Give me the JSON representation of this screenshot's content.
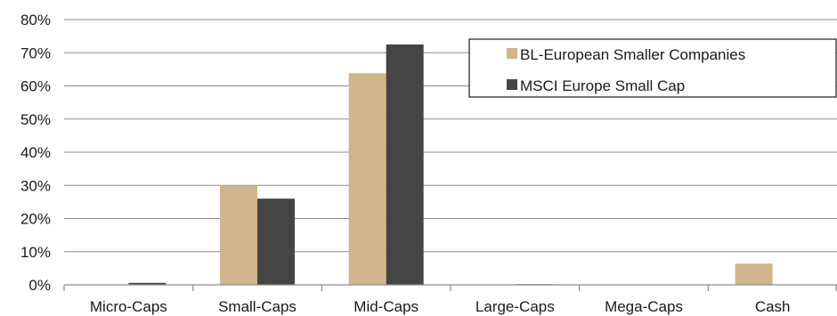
{
  "chart_data": {
    "type": "bar",
    "categories": [
      "Micro-Caps",
      "Small-Caps",
      "Mid-Caps",
      "Large-Caps",
      "Mega-Caps",
      "Cash"
    ],
    "series": [
      {
        "name": "BL-European Smaller Companies",
        "values": [
          0,
          29.8,
          63.8,
          0,
          0,
          6.4
        ],
        "color": "#d2b48c"
      },
      {
        "name": "MSCI Europe Small Cap",
        "values": [
          0.6,
          26.0,
          72.5,
          0.2,
          0,
          0
        ],
        "color": "#454545"
      }
    ],
    "ylim": [
      0,
      80
    ],
    "yticks": [
      "0%",
      "10%",
      "20%",
      "30%",
      "40%",
      "50%",
      "60%",
      "70%",
      "80%"
    ],
    "title": "",
    "xlabel": "",
    "ylabel": "",
    "grid": true,
    "legend": "top-right"
  }
}
